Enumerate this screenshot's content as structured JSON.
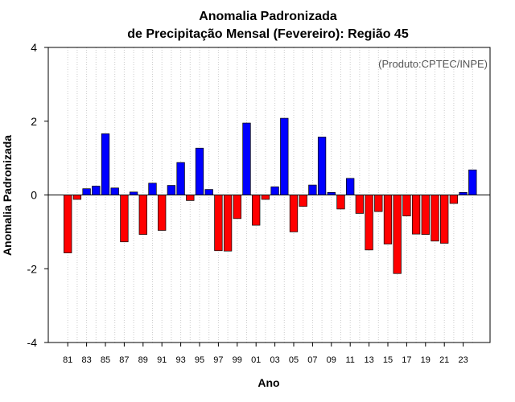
{
  "chart_data": {
    "type": "bar",
    "title": [
      "Anomalia Padronizada",
      "de Precipitação Mensal (Fevereiro): Região 45"
    ],
    "credit": "(Produto:CPTEC/INPE)",
    "xlabel": "Ano",
    "ylabel": "Anomalia Padronizada",
    "ylim": [
      -4,
      4
    ],
    "yticks": [
      -4,
      -2,
      0,
      2,
      4
    ],
    "grid": "vertical-dotted",
    "colors": {
      "positive": "#0000ff",
      "negative": "#ff0000",
      "axis": "#000000",
      "grid": "#cccccc"
    },
    "categories": [
      "81",
      "82",
      "83",
      "84",
      "85",
      "86",
      "87",
      "88",
      "89",
      "90",
      "91",
      "92",
      "93",
      "94",
      "95",
      "96",
      "97",
      "98",
      "99",
      "00",
      "01",
      "02",
      "03",
      "04",
      "05",
      "06",
      "07",
      "08",
      "09",
      "10",
      "11",
      "12",
      "13",
      "14",
      "15",
      "16",
      "17",
      "18",
      "19",
      "20",
      "21",
      "22",
      "23",
      "24"
    ],
    "xtick_labels": [
      "81",
      "83",
      "85",
      "87",
      "89",
      "91",
      "93",
      "95",
      "97",
      "99",
      "01",
      "03",
      "05",
      "07",
      "09",
      "11",
      "13",
      "15",
      "17",
      "19",
      "21",
      "23"
    ],
    "values": [
      -1.57,
      -0.12,
      0.17,
      0.24,
      1.66,
      0.19,
      -1.27,
      0.08,
      -1.07,
      0.32,
      -0.96,
      0.26,
      0.88,
      -0.15,
      1.27,
      0.15,
      -1.51,
      -1.52,
      -0.64,
      1.95,
      -0.82,
      -0.12,
      0.22,
      2.08,
      -1.0,
      -0.31,
      0.27,
      1.57,
      0.07,
      -0.38,
      0.45,
      -0.5,
      -1.49,
      -0.45,
      -1.33,
      -2.13,
      -0.57,
      -1.06,
      -1.07,
      -1.25,
      -1.31,
      -0.23,
      0.07,
      0.68
    ]
  }
}
